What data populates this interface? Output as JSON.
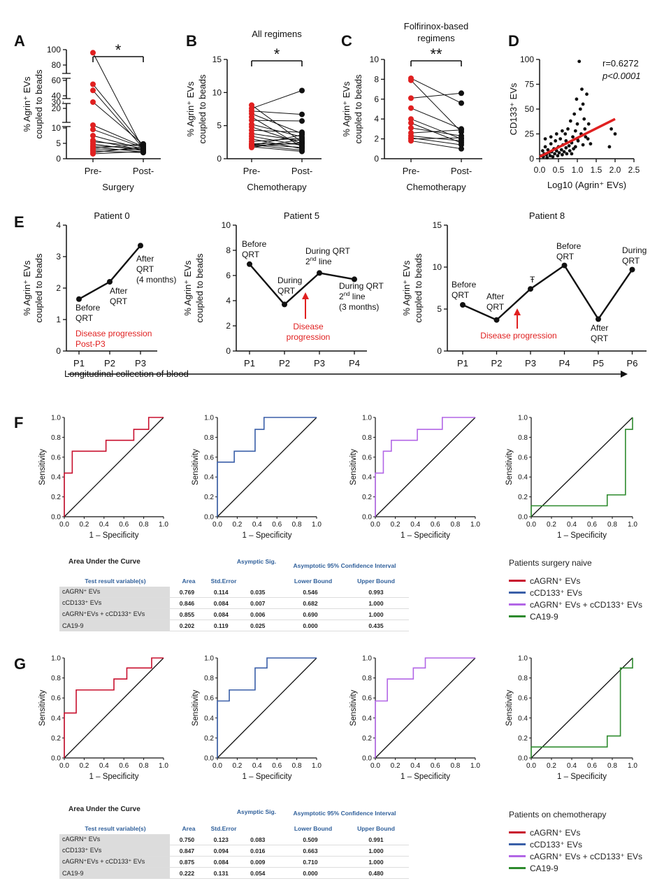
{
  "panel_letters": [
    "A",
    "B",
    "C",
    "D",
    "E",
    "F",
    "G"
  ],
  "colors": {
    "red": "#e02020",
    "black": "#111111",
    "roc_red": "#c8102e",
    "roc_blue": "#3a5fa8",
    "roc_purple": "#b266e6",
    "roc_green": "#2e8b2e",
    "header_blue": "#2f5f9a"
  },
  "chart_data": [
    {
      "id": "A",
      "type": "scatter",
      "style": "paired-dot",
      "title": "",
      "ylabel_line1": "% Agrin⁺ EVs",
      "ylabel_line2": "coupled to beads",
      "xlabel": "Surgery",
      "categories": [
        "Pre-",
        "Post-"
      ],
      "yticks_lower": [
        "0",
        "5",
        "10"
      ],
      "yticks_upper": [
        "20",
        "30",
        "40",
        "60",
        "80",
        "100"
      ],
      "significance": "*",
      "pairs": [
        [
          96,
          3.0
        ],
        [
          55,
          4.2
        ],
        [
          47,
          3.4
        ],
        [
          30,
          4.6
        ],
        [
          12,
          3.9
        ],
        [
          9.5,
          3.6
        ],
        [
          7.5,
          3.1
        ],
        [
          6.0,
          2.8
        ],
        [
          5.5,
          4.1
        ],
        [
          4.8,
          2.6
        ],
        [
          4.2,
          3.3
        ],
        [
          3.8,
          2.2
        ],
        [
          3.3,
          4.8
        ],
        [
          2.9,
          3.0
        ],
        [
          2.5,
          2.0
        ],
        [
          2.0,
          3.8
        ],
        [
          1.6,
          2.4
        ]
      ]
    },
    {
      "id": "B",
      "type": "scatter",
      "style": "paired-dot",
      "title": "All regimens",
      "ylabel_line1": "% Agrin⁺ EVs",
      "ylabel_line2": "coupled to beads",
      "xlabel": "Chemotherapy",
      "categories": [
        "Pre-",
        "Post-"
      ],
      "ylim": [
        0,
        15
      ],
      "yticks": [
        0,
        5,
        10,
        15
      ],
      "significance": "*",
      "pairs": [
        [
          8.1,
          2.5
        ],
        [
          7.6,
          10.3
        ],
        [
          7.2,
          6.7
        ],
        [
          6.8,
          3.8
        ],
        [
          6.3,
          1.8
        ],
        [
          5.8,
          5.7
        ],
        [
          5.2,
          3.3
        ],
        [
          4.8,
          2.3
        ],
        [
          4.3,
          4.0
        ],
        [
          3.8,
          2.7
        ],
        [
          3.4,
          2.0
        ],
        [
          3.0,
          1.5
        ],
        [
          2.6,
          3.1
        ],
        [
          2.3,
          2.2
        ],
        [
          2.1,
          1.3
        ],
        [
          2.0,
          3.6
        ],
        [
          1.9,
          2.4
        ],
        [
          1.8,
          1.1
        ],
        [
          1.7,
          2.9
        ],
        [
          2.2,
          1.7
        ]
      ]
    },
    {
      "id": "C",
      "type": "scatter",
      "style": "paired-dot",
      "title": "Folfirinox-based",
      "title_line2": "regimens",
      "ylabel_line1": "% Agrin⁺ EVs",
      "ylabel_line2": "coupled to beads",
      "xlabel": "Chemotherapy",
      "categories": [
        "Pre-",
        "Post-"
      ],
      "ylim": [
        0,
        10
      ],
      "yticks": [
        0,
        2,
        4,
        6,
        8,
        10
      ],
      "significance": "**",
      "pairs": [
        [
          8.1,
          5.6
        ],
        [
          7.9,
          2.7
        ],
        [
          6.1,
          6.6
        ],
        [
          5.1,
          3.0
        ],
        [
          4.0,
          2.0
        ],
        [
          3.6,
          1.6
        ],
        [
          3.1,
          2.3
        ],
        [
          2.6,
          2.9
        ],
        [
          2.3,
          1.8
        ],
        [
          2.1,
          1.4
        ],
        [
          2.0,
          2.1
        ],
        [
          1.8,
          1.0
        ]
      ]
    },
    {
      "id": "D",
      "type": "scatter",
      "title": "",
      "ylabel": "CD133⁺ EVs",
      "xlabel": "Log10 (Agrin⁺ EVs)",
      "xlim": [
        0,
        2.5
      ],
      "ylim": [
        0,
        100
      ],
      "xticks": [
        0,
        0.5,
        1.0,
        1.5,
        2.0,
        2.5
      ],
      "yticks": [
        0,
        25,
        50,
        75,
        100
      ],
      "xtick_labels": [
        "0.0",
        "0.5",
        "1.0",
        "1.5",
        "2.0",
        "2.5"
      ],
      "annotation_r": "r=0.6272",
      "annotation_p": "p<0.0001",
      "fit_line": [
        [
          0,
          2
        ],
        [
          2.0,
          40
        ]
      ],
      "points": [
        [
          0.05,
          3
        ],
        [
          0.08,
          8
        ],
        [
          0.1,
          2
        ],
        [
          0.12,
          5
        ],
        [
          0.15,
          12
        ],
        [
          0.18,
          4
        ],
        [
          0.2,
          1
        ],
        [
          0.22,
          9
        ],
        [
          0.25,
          6
        ],
        [
          0.28,
          3
        ],
        [
          0.3,
          15
        ],
        [
          0.32,
          7
        ],
        [
          0.35,
          2
        ],
        [
          0.38,
          10
        ],
        [
          0.4,
          5
        ],
        [
          0.42,
          18
        ],
        [
          0.45,
          8
        ],
        [
          0.48,
          3
        ],
        [
          0.5,
          12
        ],
        [
          0.52,
          6
        ],
        [
          0.55,
          20
        ],
        [
          0.58,
          9
        ],
        [
          0.6,
          4
        ],
        [
          0.62,
          14
        ],
        [
          0.65,
          7
        ],
        [
          0.68,
          25
        ],
        [
          0.7,
          11
        ],
        [
          0.72,
          5
        ],
        [
          0.75,
          30
        ],
        [
          0.78,
          13
        ],
        [
          0.8,
          8
        ],
        [
          0.82,
          38
        ],
        [
          0.85,
          16
        ],
        [
          0.88,
          22
        ],
        [
          0.9,
          10
        ],
        [
          0.92,
          45
        ],
        [
          0.95,
          28
        ],
        [
          0.98,
          60
        ],
        [
          1.0,
          35
        ],
        [
          1.02,
          18
        ],
        [
          1.05,
          98
        ],
        [
          1.08,
          50
        ],
        [
          1.1,
          25
        ],
        [
          1.12,
          70
        ],
        [
          1.15,
          14
        ],
        [
          1.18,
          40
        ],
        [
          1.2,
          30
        ],
        [
          1.22,
          22
        ],
        [
          1.25,
          65
        ],
        [
          1.28,
          20
        ],
        [
          1.3,
          35
        ],
        [
          1.35,
          15
        ],
        [
          1.85,
          12
        ],
        [
          1.9,
          30
        ],
        [
          2.0,
          25
        ],
        [
          0.3,
          22
        ],
        [
          0.6,
          28
        ],
        [
          0.7,
          18
        ],
        [
          0.95,
          12
        ],
        [
          1.15,
          55
        ],
        [
          0.15,
          20
        ],
        [
          0.45,
          25
        ],
        [
          0.85,
          5
        ],
        [
          1.0,
          20
        ]
      ]
    },
    {
      "id": "E0",
      "type": "line",
      "title": "Patient 0",
      "ylabel_line1": "% Agrin⁺ EVs",
      "ylabel_line2": "coupled to beads",
      "categories": [
        "P1",
        "P2",
        "P3"
      ],
      "values": [
        1.65,
        2.2,
        3.35
      ],
      "ylim": [
        0,
        4
      ],
      "yticks": [
        0,
        1,
        2,
        3,
        4
      ],
      "point_labels": [
        [
          "Before",
          "QRT"
        ],
        [
          "After",
          "QRT"
        ],
        [
          "After",
          "QRT",
          "(4 months)"
        ]
      ],
      "note_lines": [
        "Disease progression",
        "Post-P3"
      ]
    },
    {
      "id": "E5",
      "type": "line",
      "title": "Patient 5",
      "ylabel_line1": "% Agrin⁺ EVs",
      "ylabel_line2": "coupled to beads",
      "categories": [
        "P1",
        "P2",
        "P3",
        "P4"
      ],
      "values": [
        6.9,
        3.7,
        6.2,
        5.7
      ],
      "ylim": [
        0,
        10
      ],
      "yticks": [
        0,
        2,
        4,
        6,
        8,
        10
      ],
      "point_labels": [
        [
          "Before",
          "QRT"
        ],
        [
          "During",
          "QRT"
        ],
        [
          "During QRT",
          "2nd line"
        ],
        [
          "During QRT",
          "2nd line",
          "(3 months)"
        ]
      ],
      "arrow_label_lines": [
        "Disease",
        "progression"
      ]
    },
    {
      "id": "E8",
      "type": "line",
      "title": "Patient 8",
      "ylabel_line1": "% Agrin⁺ EVs",
      "ylabel_line2": "coupled to beads",
      "categories": [
        "P1",
        "P2",
        "P3",
        "P4",
        "P5",
        "P6"
      ],
      "values": [
        5.5,
        3.7,
        7.4,
        10.2,
        3.8,
        9.7
      ],
      "ylim": [
        0,
        15
      ],
      "yticks": [
        0,
        5,
        10,
        15
      ],
      "point_labels": [
        [
          "Before",
          "QRT"
        ],
        [
          "After",
          "QRT"
        ],
        [
          "Ŧ"
        ],
        [
          "Before",
          "QRT"
        ],
        [
          "After",
          "QRT"
        ],
        [
          "During",
          "QRT"
        ]
      ],
      "arrow_label": "Disease progression",
      "axis_caption": "Longitudinal collection of blood"
    }
  ],
  "roc_sets": [
    {
      "id": "F",
      "xlabel": "1 – Specificity",
      "ylabel": "Sensitivity",
      "ticks": [
        "0.0",
        "0.2",
        "0.4",
        "0.6",
        "0.8",
        "1.0"
      ],
      "curves": [
        {
          "key": "roc_red",
          "points": [
            [
              0,
              0
            ],
            [
              0,
              0.44
            ],
            [
              0,
              0.44
            ],
            [
              0.08,
              0.44
            ],
            [
              0.08,
              0.66
            ],
            [
              0.42,
              0.66
            ],
            [
              0.42,
              0.77
            ],
            [
              0.7,
              0.77
            ],
            [
              0.7,
              0.88
            ],
            [
              0.85,
              0.88
            ],
            [
              0.85,
              1
            ],
            [
              1,
              1
            ]
          ]
        },
        {
          "key": "roc_blue",
          "points": [
            [
              0,
              0
            ],
            [
              0,
              0.55
            ],
            [
              0.17,
              0.55
            ],
            [
              0.17,
              0.66
            ],
            [
              0.38,
              0.66
            ],
            [
              0.38,
              0.88
            ],
            [
              0.47,
              0.88
            ],
            [
              0.47,
              1
            ],
            [
              1,
              1
            ]
          ]
        },
        {
          "key": "roc_purple",
          "points": [
            [
              0,
              0
            ],
            [
              0,
              0.44
            ],
            [
              0.08,
              0.44
            ],
            [
              0.08,
              0.66
            ],
            [
              0.16,
              0.66
            ],
            [
              0.16,
              0.77
            ],
            [
              0.42,
              0.77
            ],
            [
              0.42,
              0.88
            ],
            [
              0.67,
              0.88
            ],
            [
              0.67,
              1
            ],
            [
              1,
              1
            ]
          ]
        },
        {
          "key": "roc_green",
          "points": [
            [
              0,
              0
            ],
            [
              0,
              0.11
            ],
            [
              0.75,
              0.11
            ],
            [
              0.75,
              0.22
            ],
            [
              0.93,
              0.22
            ],
            [
              0.93,
              0.88
            ],
            [
              1,
              0.88
            ],
            [
              1,
              1
            ]
          ]
        }
      ],
      "table": {
        "title": "Area Under the Curve",
        "headers": {
          "variable": "Test result variable(s)",
          "area": "Area",
          "stderr": "Std.Error",
          "sig": "Asymptic Sig.",
          "ci": "Asymptotic 95% Confidence Interval",
          "lower": "Lower Bound",
          "upper": "Upper Bound"
        },
        "rows": [
          [
            "cAGRN⁺ EVs",
            "0.769",
            "0.114",
            "0.035",
            "0.546",
            "0.993"
          ],
          [
            "cCD133⁺ EVs",
            "0.846",
            "0.084",
            "0.007",
            "0.682",
            "1.000"
          ],
          [
            "cAGRN⁺EVs + cCD133⁺ EVs",
            "0.855",
            "0.084",
            "0.006",
            "0.690",
            "1.000"
          ],
          [
            "CA19-9",
            "0.202",
            "0.119",
            "0.025",
            "0.000",
            "0.435"
          ]
        ]
      },
      "legend": {
        "title": "Patients surgery naive",
        "items": [
          "cAGRN⁺ EVs",
          "cCD133⁺ EVs",
          "cAGRN⁺ EVs + cCD133⁺ EVs",
          "CA19-9"
        ]
      }
    },
    {
      "id": "G",
      "xlabel": "1 – Specificity",
      "ylabel": "Sensitivity",
      "ticks": [
        "0.0",
        "0.2",
        "0.4",
        "0.6",
        "0.8",
        "1.0"
      ],
      "curves": [
        {
          "key": "roc_red",
          "points": [
            [
              0,
              0
            ],
            [
              0,
              0.45
            ],
            [
              0.12,
              0.45
            ],
            [
              0.12,
              0.68
            ],
            [
              0.5,
              0.68
            ],
            [
              0.5,
              0.79
            ],
            [
              0.63,
              0.79
            ],
            [
              0.63,
              0.9
            ],
            [
              0.88,
              0.9
            ],
            [
              0.88,
              1
            ],
            [
              1,
              1
            ]
          ]
        },
        {
          "key": "roc_blue",
          "points": [
            [
              0,
              0
            ],
            [
              0,
              0.57
            ],
            [
              0.12,
              0.57
            ],
            [
              0.12,
              0.68
            ],
            [
              0.38,
              0.68
            ],
            [
              0.38,
              0.9
            ],
            [
              0.5,
              0.9
            ],
            [
              0.5,
              1
            ],
            [
              1,
              1
            ]
          ]
        },
        {
          "key": "roc_purple",
          "points": [
            [
              0,
              0
            ],
            [
              0,
              0.57
            ],
            [
              0.12,
              0.57
            ],
            [
              0.12,
              0.79
            ],
            [
              0.38,
              0.79
            ],
            [
              0.38,
              0.9
            ],
            [
              0.5,
              0.9
            ],
            [
              0.5,
              1
            ],
            [
              1,
              1
            ]
          ]
        },
        {
          "key": "roc_green",
          "points": [
            [
              0,
              0
            ],
            [
              0,
              0.11
            ],
            [
              0.75,
              0.11
            ],
            [
              0.75,
              0.22
            ],
            [
              0.88,
              0.22
            ],
            [
              0.88,
              0.9
            ],
            [
              1,
              0.9
            ],
            [
              1,
              1
            ]
          ]
        }
      ],
      "table": {
        "title": "Area Under the Curve",
        "headers": {
          "variable": "Test result variable(s)",
          "area": "Area",
          "stderr": "Std.Error",
          "sig": "Asymptic Sig.",
          "ci": "Asymptotic 95% Confidence Interval",
          "lower": "Lower Bound",
          "upper": "Upper Bound"
        },
        "rows": [
          [
            "cAGRN⁺ EVs",
            "0.750",
            "0.123",
            "0.083",
            "0.509",
            "0.991"
          ],
          [
            "cCD133⁺ EVs",
            "0.847",
            "0.094",
            "0.016",
            "0.663",
            "1.000"
          ],
          [
            "cAGRN⁺EVs + cCD133⁺ EVs",
            "0.875",
            "0.084",
            "0.009",
            "0.710",
            "1.000"
          ],
          [
            "CA19-9",
            "0.222",
            "0.131",
            "0.054",
            "0.000",
            "0.480"
          ]
        ]
      },
      "legend": {
        "title": "Patients on chemotherapy",
        "items": [
          "cAGRN⁺ EVs",
          "cCD133⁺ EVs",
          "cAGRN⁺ EVs + cCD133⁺ EVs",
          "CA19-9"
        ]
      }
    }
  ]
}
